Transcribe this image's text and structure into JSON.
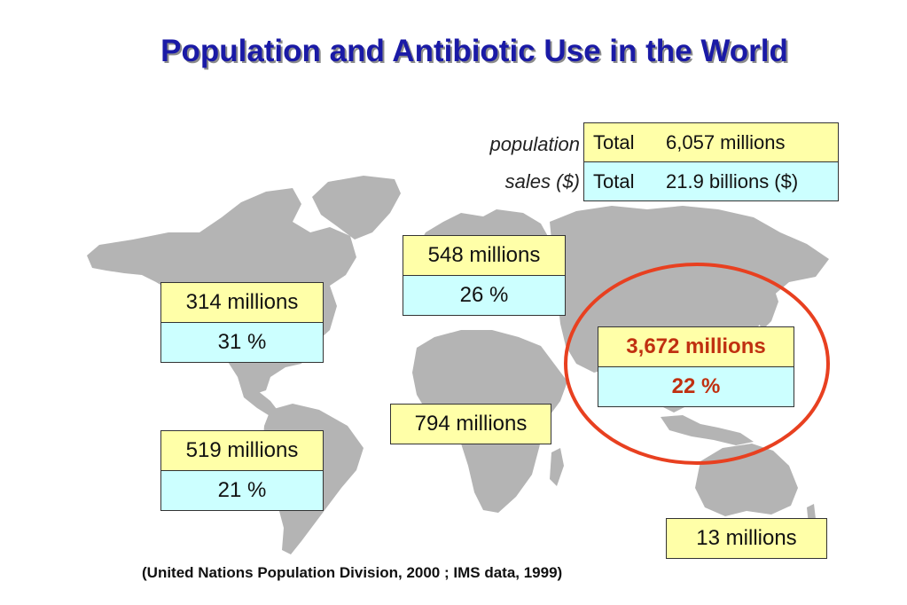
{
  "title": "Population and Antibiotic Use in the World",
  "legend": {
    "population_label": "population",
    "sales_label": "sales ($)"
  },
  "totals": {
    "population": {
      "label": "Total",
      "value": "6,057 millions"
    },
    "sales": {
      "label": "Total",
      "value": "21.9 billions ($)"
    }
  },
  "regions": {
    "north_america": {
      "population": "314 millions",
      "share": "31 %"
    },
    "europe": {
      "population": "548 millions",
      "share": "26 %"
    },
    "asia": {
      "population": "3,672 millions",
      "share": "22 %"
    },
    "latin_america": {
      "population": "519 millions",
      "share": "21 %"
    },
    "africa": {
      "population": "794 millions"
    },
    "oceania": {
      "population": "13 millions"
    }
  },
  "colors": {
    "title": "#1a1aa6",
    "map": "#b4b4b4",
    "population_fill": "#ffffa8",
    "share_fill": "#ccffff",
    "highlight": "#e84020",
    "highlight_text": "#c03010"
  },
  "source": "(United Nations Population Division, 2000 ; IMS data, 1999)"
}
